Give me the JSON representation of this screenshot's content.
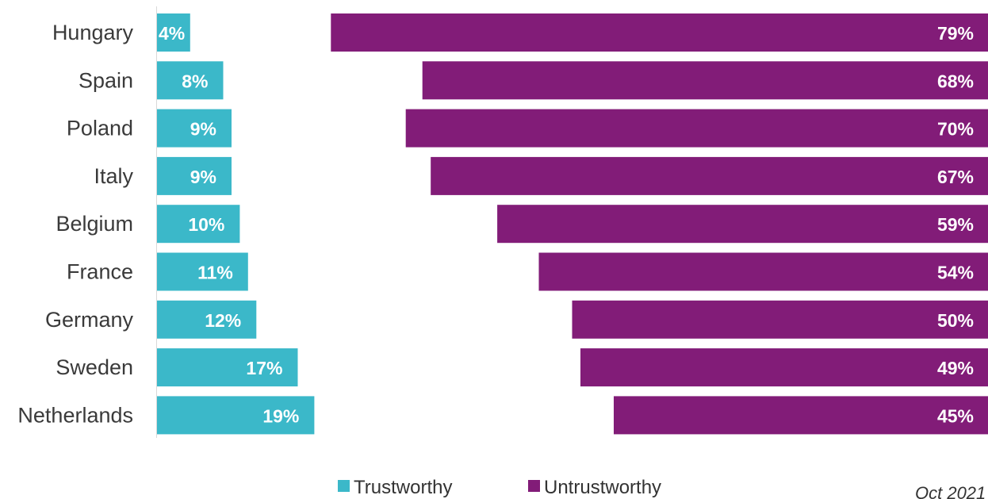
{
  "chart_data": {
    "type": "bar",
    "categories": [
      "Hungary",
      "Spain",
      "Poland",
      "Italy",
      "Belgium",
      "France",
      "Germany",
      "Sweden",
      "Netherlands"
    ],
    "series": [
      {
        "name": "Trustworthy",
        "color": "#3bb8c9",
        "values": [
          4,
          8,
          9,
          9,
          10,
          11,
          12,
          17,
          19
        ],
        "labels": [
          "4%",
          "8%",
          "9%",
          "9%",
          "10%",
          "11%",
          "12%",
          "17%",
          "19%"
        ]
      },
      {
        "name": "Untrustworthy",
        "color": "#821c78",
        "values": [
          79,
          68,
          70,
          67,
          59,
          54,
          50,
          49,
          45
        ],
        "labels": [
          "79%",
          "68%",
          "70%",
          "67%",
          "59%",
          "54%",
          "50%",
          "49%",
          "45%"
        ]
      }
    ],
    "legend_position": "bottom",
    "date_note": "Oct 2021"
  }
}
